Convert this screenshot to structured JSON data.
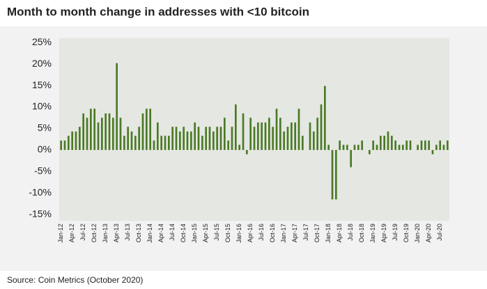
{
  "chart_data": {
    "type": "bar",
    "title": "Month to month change in addresses with <10 bitcoin",
    "source": "Source: Coin Metrics (October 2020)",
    "color": "#4a7a25",
    "grid": false,
    "categories": [
      "Jan-12",
      null,
      null,
      "Apr-12",
      null,
      null,
      "Jul-12",
      null,
      null,
      "Oct-12",
      null,
      null,
      "Jan-13",
      null,
      null,
      "Apr-13",
      null,
      null,
      "Jul-13",
      null,
      null,
      "Oct-13",
      null,
      null,
      "Jan-14",
      null,
      null,
      "Apr-14",
      null,
      null,
      "Jul-14",
      null,
      null,
      "Oct-14",
      null,
      null,
      "Jan-15",
      null,
      null,
      "Apr-15",
      null,
      null,
      "Jul-15",
      null,
      null,
      "Oct-15",
      null,
      null,
      "Jan-16",
      null,
      null,
      "Apr-16",
      null,
      null,
      "Jul-16",
      null,
      null,
      "Oct-16",
      null,
      null,
      "Jan-17",
      null,
      null,
      "Apr-17",
      null,
      null,
      "Jul-17",
      null,
      null,
      "Oct-17",
      null,
      null,
      "Jan-18",
      null,
      null,
      "Apr-18",
      null,
      null,
      "Jul-18",
      null,
      null,
      "Oct-18",
      null,
      null,
      "Jan-19",
      null,
      null,
      "Apr-19",
      null,
      null,
      "Jul-19",
      null,
      null,
      "Oct-19",
      null,
      null,
      "Jan-20",
      null,
      null,
      "Apr-20",
      null,
      null,
      "Jul-20",
      null,
      null
    ],
    "values": [
      2.2,
      2.2,
      3.3,
      4.3,
      4.3,
      5.4,
      8.5,
      7.5,
      9.6,
      9.6,
      6.4,
      7.5,
      8.5,
      8.5,
      7.5,
      20.2,
      7.5,
      3.3,
      5.4,
      4.3,
      3.3,
      5.4,
      8.5,
      9.6,
      9.6,
      2.2,
      6.4,
      3.3,
      3.3,
      3.3,
      5.4,
      5.4,
      4.3,
      5.4,
      4.3,
      4.3,
      6.4,
      5.4,
      3.3,
      5.4,
      5.4,
      4.3,
      5.4,
      5.4,
      7.5,
      2.2,
      5.4,
      10.6,
      1.2,
      8.5,
      -1,
      7.5,
      5.4,
      6.4,
      6.4,
      6.4,
      7.5,
      5.4,
      9.6,
      7.5,
      4.3,
      5.4,
      6.4,
      6.4,
      9.6,
      3.3,
      0,
      6.4,
      4.3,
      7.5,
      10.6,
      14.9,
      1.2,
      -11.5,
      -11.5,
      2.2,
      1.2,
      1.2,
      -4,
      1.2,
      1.2,
      2.2,
      0,
      -1,
      2.2,
      1.2,
      3.3,
      3.3,
      4.3,
      3.3,
      2.2,
      1.2,
      1.2,
      2.2,
      2.2,
      0,
      1.2,
      2.2,
      2.2,
      2.2,
      -1,
      1.2,
      2.2,
      1.2,
      2.2
    ],
    "ylim": [
      -16.5,
      26
    ],
    "yticks": [
      {
        "value": 25,
        "label": "25%"
      },
      {
        "value": 20,
        "label": "20%"
      },
      {
        "value": 15,
        "label": "15%"
      },
      {
        "value": 10,
        "label": "10%"
      },
      {
        "value": 5,
        "label": "5%"
      },
      {
        "value": 0,
        "label": "0%"
      },
      {
        "value": -5,
        "label": "-5%"
      },
      {
        "value": -10,
        "label": "-10%"
      },
      {
        "value": -15,
        "label": "-15%"
      }
    ]
  }
}
